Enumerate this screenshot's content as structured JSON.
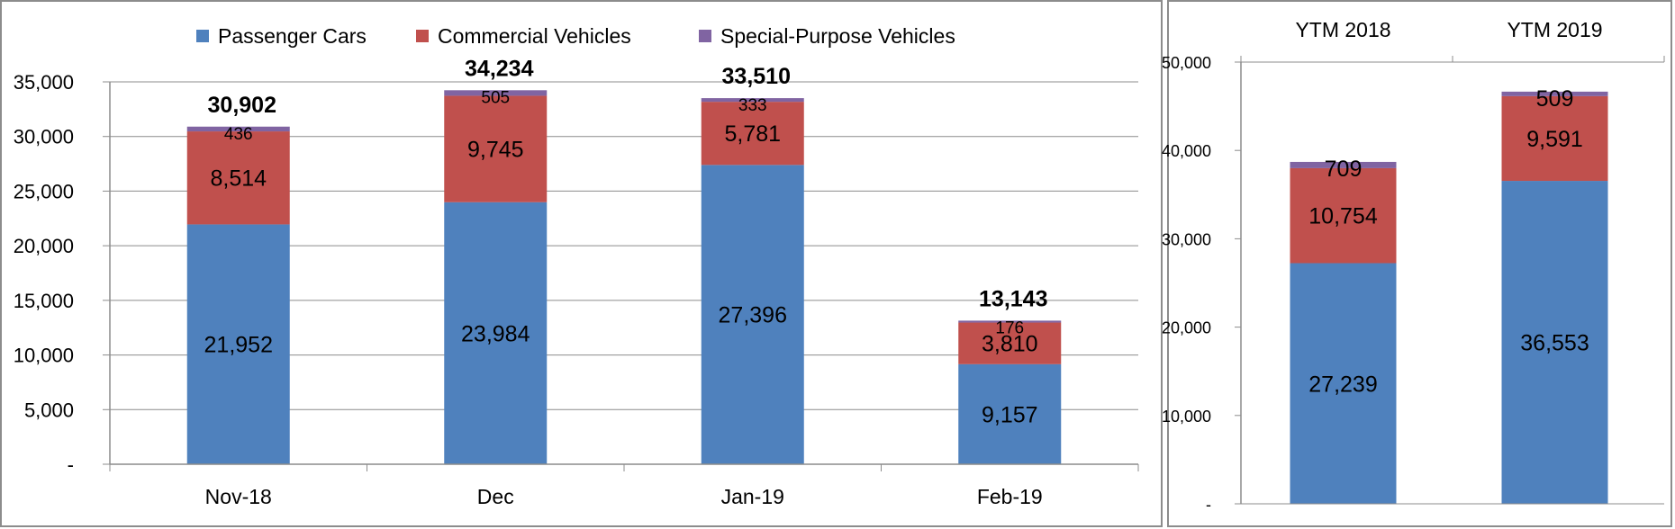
{
  "chart_data": [
    {
      "type": "bar",
      "stacked": true,
      "categories": [
        "Nov-18",
        "Dec",
        "Jan-19",
        "Feb-19"
      ],
      "series": [
        {
          "name": "Passenger Cars",
          "color": "#4f81bd",
          "values": [
            21952,
            23984,
            27396,
            9157
          ],
          "labels": [
            "21,952",
            "23,984",
            "27,396",
            "9,157"
          ]
        },
        {
          "name": "Commercial Vehicles",
          "color": "#c0504d",
          "values": [
            8514,
            9745,
            5781,
            3810
          ],
          "labels": [
            "8,514",
            "9,745",
            "5,781",
            "3,810"
          ]
        },
        {
          "name": "Special-Purpose Vehicles",
          "color": "#8064a2",
          "values": [
            436,
            505,
            333,
            176
          ],
          "labels": [
            "436",
            "505",
            "333",
            "176"
          ]
        }
      ],
      "totals": [
        30902,
        34234,
        33510,
        13143
      ],
      "total_labels": [
        "30,902",
        "34,234",
        "33,510",
        "13,143"
      ],
      "ylim": [
        0,
        35000
      ],
      "yticks": [
        0,
        5000,
        10000,
        15000,
        20000,
        25000,
        30000,
        35000
      ],
      "ytick_labels": [
        "-",
        "5,000",
        "10,000",
        "15,000",
        "20,000",
        "25,000",
        "30,000",
        "35,000"
      ],
      "grid": true,
      "legend_position": "top"
    },
    {
      "type": "bar",
      "stacked": true,
      "categories": [
        "YTM 2018",
        "YTM 2019"
      ],
      "series": [
        {
          "name": "Passenger Cars",
          "color": "#4f81bd",
          "values": [
            27239,
            36553
          ],
          "labels": [
            "27,239",
            "36,553"
          ]
        },
        {
          "name": "Commercial Vehicles",
          "color": "#c0504d",
          "values": [
            10754,
            9591
          ],
          "labels": [
            "10,754",
            "9,591"
          ]
        },
        {
          "name": "Special-Purpose Vehicles",
          "color": "#8064a2",
          "values": [
            709,
            509
          ],
          "labels": [
            "709",
            "509"
          ]
        }
      ],
      "ylim": [
        0,
        50000
      ],
      "yticks": [
        0,
        10000,
        20000,
        30000,
        40000,
        50000
      ],
      "ytick_labels": [
        "-",
        "10,000",
        "20,000",
        "30,000",
        "40,000",
        "50,000"
      ],
      "grid": false,
      "category_axis_position": "top"
    }
  ]
}
